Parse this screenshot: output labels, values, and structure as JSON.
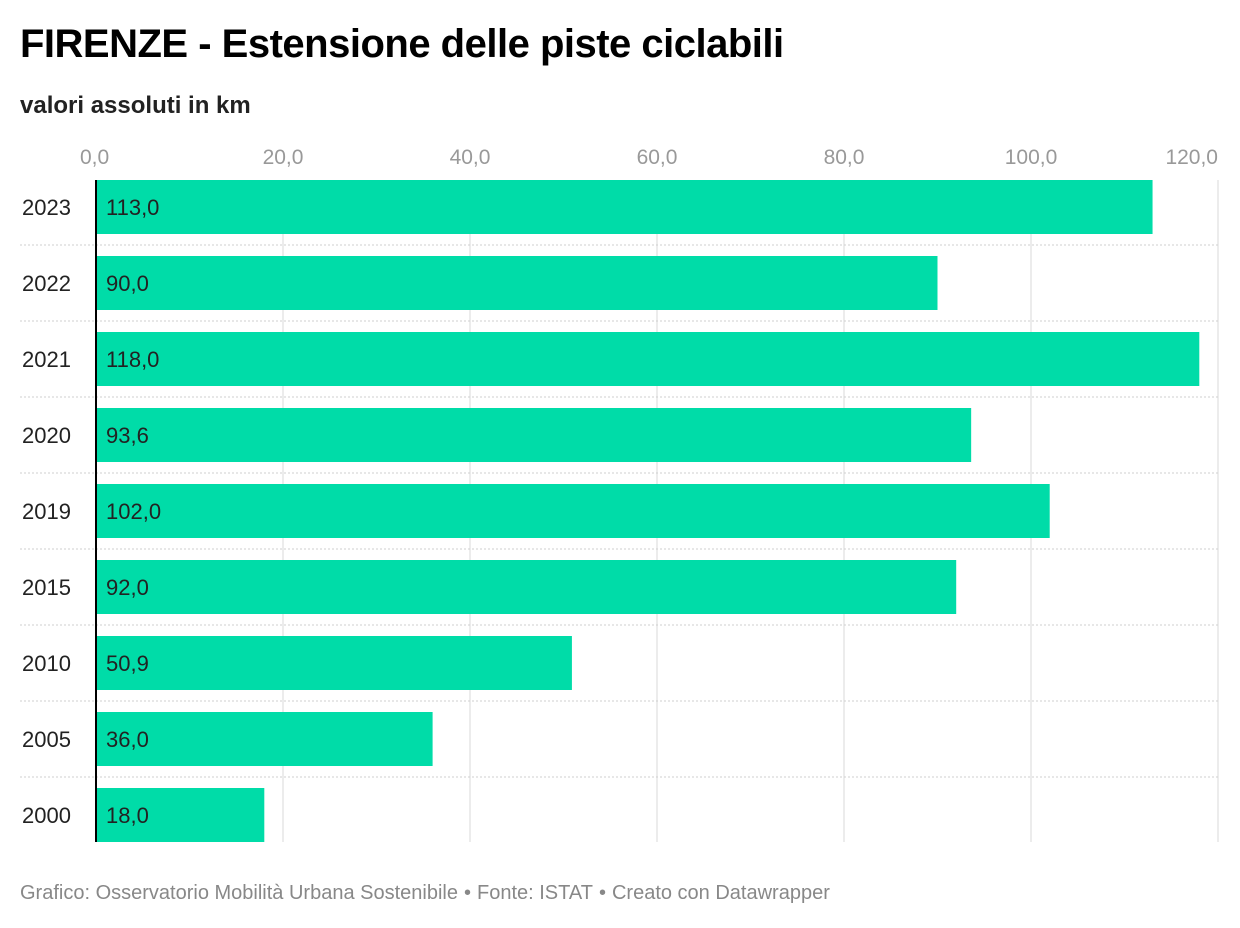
{
  "header": {
    "title": "FIRENZE - Estensione delle piste ciclabili",
    "subtitle": "valori assoluti in km"
  },
  "footer": {
    "chart_credit": "Grafico: Osservatorio Mobilità Urbana Sostenibile",
    "source": "Fonte: ISTAT",
    "made_with": "Creato con Datawrapper",
    "separator": "•"
  },
  "colors": {
    "bar": "#00dca8",
    "grid": "#d9d9d9",
    "axis": "#000000",
    "tick_label": "#999999",
    "category_label": "#222222",
    "value_label": "#222222"
  },
  "chart_data": {
    "type": "bar",
    "orientation": "horizontal",
    "title": "FIRENZE - Estensione delle piste ciclabili",
    "subtitle": "valori assoluti in km",
    "categories": [
      "2023",
      "2022",
      "2021",
      "2020",
      "2019",
      "2015",
      "2010",
      "2005",
      "2000"
    ],
    "values": [
      113.0,
      90.0,
      118.0,
      93.6,
      102.0,
      92.0,
      50.9,
      36.0,
      18.0
    ],
    "value_labels": [
      "113,0",
      "90,0",
      "118,0",
      "93,6",
      "102,0",
      "92,0",
      "50,9",
      "36,0",
      "18,0"
    ],
    "xlim": [
      0,
      120
    ],
    "x_ticks": [
      0,
      20,
      40,
      60,
      80,
      100,
      120
    ],
    "x_tick_labels": [
      "0,0",
      "20,0",
      "40,0",
      "60,0",
      "80,0",
      "100,0",
      "120,0"
    ],
    "xlabel": "",
    "ylabel": "",
    "grid": true,
    "legend": "none"
  }
}
